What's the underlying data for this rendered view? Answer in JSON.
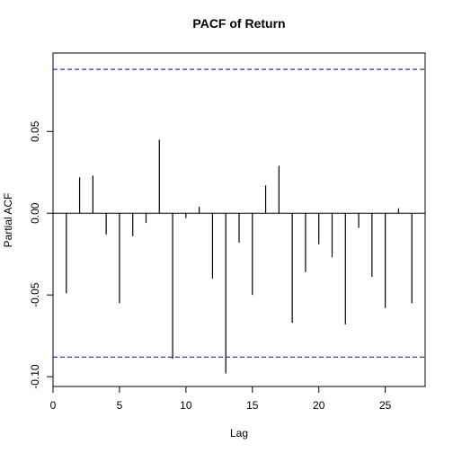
{
  "chart_data": {
    "type": "bar",
    "title": "PACF of Return",
    "xlabel": "Lag",
    "ylabel": "Partial ACF",
    "xlim": [
      0,
      28
    ],
    "ylim": [
      -0.106,
      0.098
    ],
    "x_ticks": [
      0,
      5,
      10,
      15,
      20,
      25
    ],
    "x_tick_labels": [
      "0",
      "5",
      "10",
      "15",
      "20",
      "25"
    ],
    "y_ticks": [
      -0.1,
      -0.05,
      0.0,
      0.05
    ],
    "y_tick_labels": [
      "-0.10",
      "-0.05",
      "0.00",
      "0.05"
    ],
    "confidence_bound": 0.088,
    "zero_line": 0,
    "grid": false,
    "lags": [
      1,
      2,
      3,
      4,
      5,
      6,
      7,
      8,
      9,
      10,
      11,
      12,
      13,
      14,
      15,
      16,
      17,
      18,
      19,
      20,
      21,
      22,
      23,
      24,
      25,
      26,
      27
    ],
    "values": [
      -0.049,
      0.022,
      0.023,
      -0.013,
      -0.055,
      -0.014,
      -0.006,
      0.045,
      -0.089,
      -0.003,
      0.004,
      -0.04,
      -0.098,
      -0.018,
      -0.05,
      0.017,
      0.029,
      -0.067,
      -0.036,
      -0.019,
      -0.027,
      -0.068,
      -0.009,
      -0.039,
      -0.058,
      0.003,
      -0.055
    ],
    "colors": {
      "bars": "#000000",
      "bounds": "#0000cc",
      "axes": "#000000"
    }
  }
}
